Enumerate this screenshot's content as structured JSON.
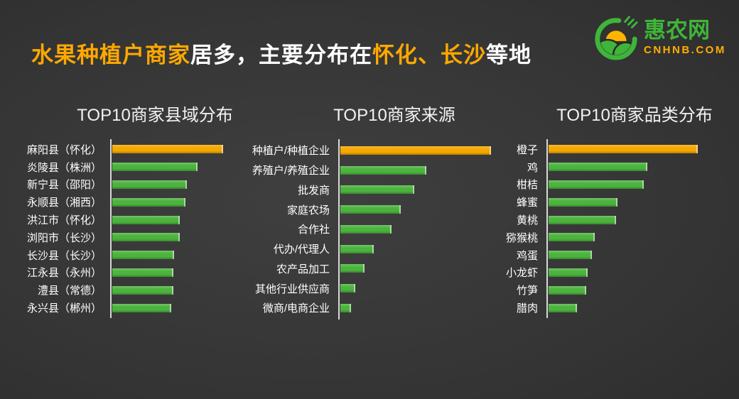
{
  "header": {
    "title_segments": [
      {
        "text": "水果种植户商家",
        "color": "#FFA800"
      },
      {
        "text": "居多，主要分布在",
        "color": "#FFFFFF"
      },
      {
        "text": "怀化、长沙",
        "color": "#FFA800"
      },
      {
        "text": "等地",
        "color": "#FFFFFF"
      }
    ]
  },
  "logo": {
    "name": "惠农网",
    "domain": "CNHNB.COM",
    "icon": "huinong-sun-hills-wheat",
    "green": "#3FB53A",
    "orange": "#FFAE00"
  },
  "colors": {
    "background_center": "#3F3F3F",
    "background_edge": "#232323",
    "bar_green": "#4CB43E",
    "bar_orange": "#F5A800",
    "axis_line": "#D8D8D8",
    "chart_title": "#F2F2F2",
    "label_text": "#FFFFFF"
  },
  "chart_data": [
    {
      "type": "bar",
      "orientation": "horizontal",
      "title": "TOP10商家县域分布",
      "categories": [
        "麻阳县（怀化）",
        "炎陵县（株洲）",
        "新宁县（邵阳）",
        "永顺县（湘西）",
        "洪江市（怀化）",
        "浏阳市（长沙）",
        "长沙县（长沙）",
        "江永县（永州）",
        "澧县（常德）",
        "永兴县（郴州）"
      ],
      "values_pct_of_max": [
        100,
        77,
        67,
        66,
        61,
        61,
        56,
        55,
        55,
        53
      ],
      "highlight_index": 0,
      "bar_color": "#4CB43E",
      "highlight_color": "#F5A800",
      "value_axis": "hidden — no numeric labels shown; values are bar lengths as % of longest bar",
      "legend": "none",
      "grid": "off"
    },
    {
      "type": "bar",
      "orientation": "horizontal",
      "title": "TOP10商家来源",
      "categories": [
        "种植户/种植企业",
        "养殖户/养殖企业",
        "批发商",
        "家庭农场",
        "合作社",
        "代办/代理人",
        "农产品加工",
        "其他行业供应商",
        "微商/电商企业"
      ],
      "values_pct_of_max": [
        100,
        57,
        49,
        40,
        34,
        22,
        16,
        10,
        7
      ],
      "highlight_index": 0,
      "bar_color": "#4CB43E",
      "highlight_color": "#F5A800",
      "value_axis": "hidden — no numeric labels shown; values are bar lengths as % of longest bar",
      "legend": "none",
      "grid": "off"
    },
    {
      "type": "bar",
      "orientation": "horizontal",
      "title": "TOP10商家品类分布",
      "categories": [
        "橙子",
        "鸡",
        "柑桔",
        "蜂蜜",
        "黄桃",
        "猕猴桃",
        "鸡蛋",
        "小龙虾",
        "竹笋",
        "腊肉"
      ],
      "values_pct_of_max": [
        100,
        66,
        64,
        46,
        45,
        31,
        29,
        26,
        25,
        19
      ],
      "highlight_index": 0,
      "bar_color": "#4CB43E",
      "highlight_color": "#F5A800",
      "value_axis": "hidden — no numeric labels shown; values are bar lengths as % of longest bar",
      "legend": "none",
      "grid": "off"
    }
  ]
}
